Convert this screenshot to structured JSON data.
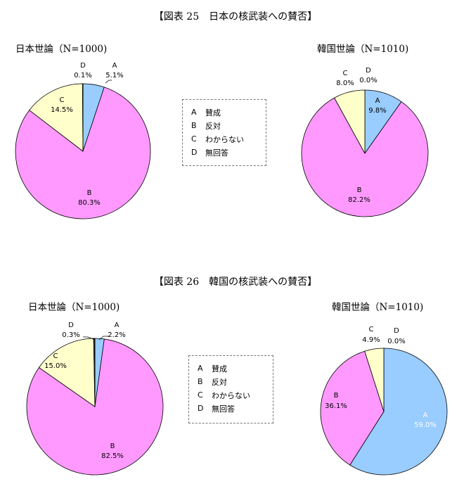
{
  "figures": [
    {
      "title": "【図表 25　日本の核武装への賛否】",
      "legend": [
        {
          "key": "A",
          "text": "賛成"
        },
        {
          "key": "B",
          "text": "反対"
        },
        {
          "key": "C",
          "text": "わからない"
        },
        {
          "key": "D",
          "text": "無回答"
        }
      ]
    },
    {
      "title": "【図表 26　韓国の核武装への賛否】",
      "legend": [
        {
          "key": "A",
          "text": "賛成"
        },
        {
          "key": "B",
          "text": "反対"
        },
        {
          "key": "C",
          "text": "わからない"
        },
        {
          "key": "D",
          "text": "無回答"
        }
      ]
    }
  ],
  "colors": {
    "A": "#99ccff",
    "B": "#ff99ff",
    "C": "#ffffcc",
    "D": "#333333"
  },
  "chart_data": [
    {
      "type": "pie",
      "title": "日本世論（N=1000)",
      "categories": [
        "A",
        "B",
        "C",
        "D"
      ],
      "values": [
        5.1,
        80.3,
        14.5,
        0.1
      ],
      "labels": [
        "5.1%",
        "80.3%",
        "14.5%",
        "0.1%"
      ]
    },
    {
      "type": "pie",
      "title": "韓国世論（N=1010)",
      "categories": [
        "A",
        "B",
        "C",
        "D"
      ],
      "values": [
        9.8,
        82.2,
        8.0,
        0.0
      ],
      "labels": [
        "9.8%",
        "82.2%",
        "8.0%",
        "0.0%"
      ]
    },
    {
      "type": "pie",
      "title": "日本世論（N=1000)",
      "categories": [
        "A",
        "B",
        "C",
        "D"
      ],
      "values": [
        2.2,
        82.5,
        15.0,
        0.3
      ],
      "labels": [
        "2.2%",
        "82.5%",
        "15.0%",
        "0.3%"
      ]
    },
    {
      "type": "pie",
      "title": "韓国世論（N=1010)",
      "categories": [
        "A",
        "B",
        "C",
        "D"
      ],
      "values": [
        59.0,
        36.1,
        4.9,
        0.0
      ],
      "labels": [
        "59.0%",
        "36.1%",
        "4.9%",
        "0.0%"
      ]
    }
  ]
}
